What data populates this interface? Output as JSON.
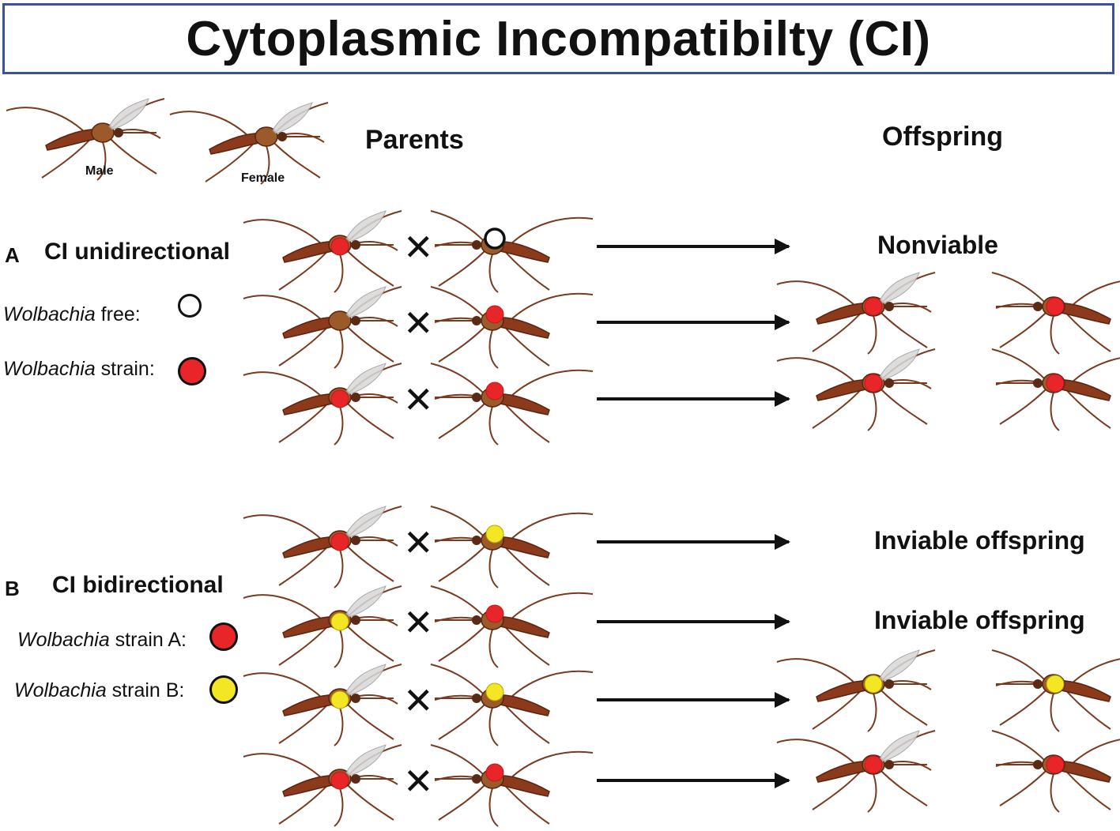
{
  "title": "Cytoplasmic Incompatibilty (CI)",
  "headers": {
    "parents": "Parents",
    "offspring": "Offspring"
  },
  "key": {
    "male": "Male",
    "female": "Female"
  },
  "colors": {
    "red": "#e8262a",
    "yellow": "#f2e625",
    "free": "#ffffff",
    "body": "#8b3a1c",
    "thorax": "#9a5a2a",
    "frame": "#3a4fa5"
  },
  "section_a": {
    "letter": "A",
    "title": "CI unidirectional",
    "legend": [
      {
        "italic": "Wolbachia",
        "rest": " free:",
        "color": "free"
      },
      {
        "italic": "Wolbachia",
        "rest": " strain:",
        "color": "red"
      }
    ],
    "crosses": [
      {
        "male": "red",
        "female": "free",
        "outcome": "Nonviable",
        "offspring": []
      },
      {
        "male": "none",
        "female": "red",
        "outcome": "",
        "offspring": [
          "red",
          "red"
        ]
      },
      {
        "male": "red",
        "female": "red",
        "outcome": "",
        "offspring": [
          "red",
          "red"
        ]
      }
    ]
  },
  "section_b": {
    "letter": "B",
    "title": "CI bidirectional",
    "legend": [
      {
        "italic": "Wolbachia",
        "rest": " strain A:",
        "color": "red"
      },
      {
        "italic": "Wolbachia",
        "rest": " strain B:",
        "color": "yellow"
      }
    ],
    "crosses": [
      {
        "male": "red",
        "female": "yellow",
        "outcome": "Inviable offspring",
        "offspring": []
      },
      {
        "male": "yellow",
        "female": "red",
        "outcome": "Inviable offspring",
        "offspring": []
      },
      {
        "male": "yellow",
        "female": "yellow",
        "outcome": "",
        "offspring": [
          "yellow",
          "yellow"
        ]
      },
      {
        "male": "red",
        "female": "red",
        "outcome": "",
        "offspring": [
          "red",
          "red"
        ]
      }
    ]
  },
  "cross_symbol": "✕"
}
